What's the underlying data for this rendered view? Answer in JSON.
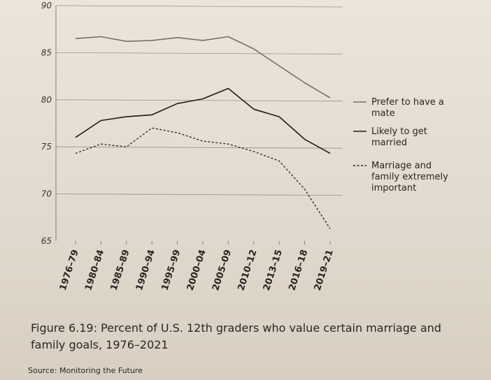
{
  "chart_data": {
    "type": "line",
    "categories": [
      "1976–79",
      "1980–84",
      "1985–89",
      "1990–94",
      "1995–99",
      "2000–04",
      "2005–09",
      "2010–12",
      "2013–15",
      "2016–18",
      "2019–21"
    ],
    "series": [
      {
        "name": "Prefer to have a mate",
        "style": "solid",
        "color": "#777069",
        "values": [
          86.5,
          86.7,
          86.2,
          86.3,
          86.6,
          86.3,
          86.7,
          85.4,
          83.6,
          81.8,
          80.2
        ]
      },
      {
        "name": "Likely to get married",
        "style": "solid",
        "color": "#1e1b19",
        "values": [
          76.0,
          77.8,
          78.2,
          78.4,
          79.6,
          80.1,
          81.2,
          79.0,
          78.2,
          75.8,
          74.3
        ]
      },
      {
        "name": "Marriage and family extremely important",
        "style": "dashed",
        "color": "#2a2522",
        "values": [
          74.3,
          75.3,
          75.0,
          77.0,
          76.5,
          75.6,
          75.3,
          74.5,
          73.5,
          70.5,
          66.3
        ]
      }
    ],
    "yticks": [
      90,
      85,
      80,
      75,
      70,
      65
    ],
    "ylim": [
      65,
      90
    ],
    "legend": "right",
    "grid": true
  },
  "caption": "Figure 6.19: Percent of U.S. 12th graders who value certain marriage and family goals, 1976–2021",
  "source": "Source: Monitoring the Future"
}
